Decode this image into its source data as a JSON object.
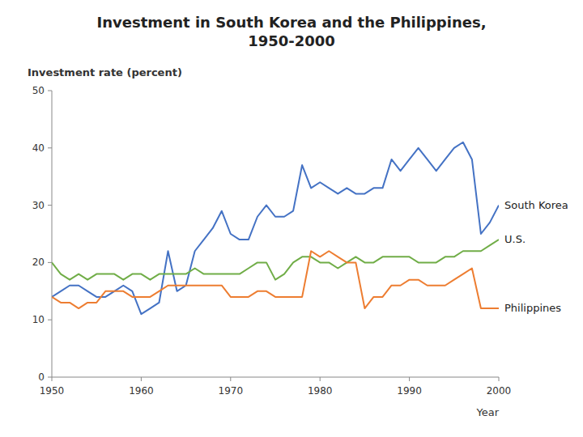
{
  "chart_data": {
    "type": "line",
    "title": "Investment in South Korea and the Philippines,\n1950-2000",
    "y_label": "Investment rate (percent)",
    "x_label": "Year",
    "x": [
      1950,
      1951,
      1952,
      1953,
      1954,
      1955,
      1956,
      1957,
      1958,
      1959,
      1960,
      1961,
      1962,
      1963,
      1964,
      1965,
      1966,
      1967,
      1968,
      1969,
      1970,
      1971,
      1972,
      1973,
      1974,
      1975,
      1976,
      1977,
      1978,
      1979,
      1980,
      1981,
      1982,
      1983,
      1984,
      1985,
      1986,
      1987,
      1988,
      1989,
      1990,
      1991,
      1992,
      1993,
      1994,
      1995,
      1996,
      1997,
      1998,
      1999,
      2000
    ],
    "series": [
      {
        "name": "South Korea",
        "color": "#4472C4",
        "values": [
          14,
          15,
          16,
          16,
          15,
          14,
          14,
          15,
          16,
          15,
          11,
          12,
          13,
          22,
          15,
          16,
          22,
          24,
          26,
          29,
          25,
          24,
          24,
          28,
          30,
          28,
          28,
          29,
          37,
          33,
          34,
          33,
          32,
          33,
          32,
          32,
          33,
          33,
          38,
          36,
          38,
          40,
          38,
          36,
          38,
          40,
          41,
          38,
          25,
          27,
          30
        ]
      },
      {
        "name": "U.S.",
        "color": "#70AD47",
        "values": [
          20,
          18,
          17,
          18,
          17,
          18,
          18,
          18,
          17,
          18,
          18,
          17,
          18,
          18,
          18,
          18,
          19,
          18,
          18,
          18,
          18,
          18,
          19,
          20,
          20,
          17,
          18,
          20,
          21,
          21,
          20,
          20,
          19,
          20,
          21,
          20,
          20,
          21,
          21,
          21,
          21,
          20,
          20,
          20,
          21,
          21,
          22,
          22,
          22,
          23,
          24
        ]
      },
      {
        "name": "Philippines",
        "color": "#ED7D31",
        "values": [
          14,
          13,
          13,
          12,
          13,
          13,
          15,
          15,
          15,
          14,
          14,
          14,
          15,
          16,
          16,
          16,
          16,
          16,
          16,
          16,
          14,
          14,
          14,
          15,
          15,
          14,
          14,
          14,
          14,
          22,
          21,
          22,
          21,
          20,
          20,
          12,
          14,
          14,
          16,
          16,
          17,
          17,
          16,
          16,
          16,
          17,
          18,
          19,
          12,
          12,
          12
        ]
      }
    ],
    "xlim": [
      1950,
      2000
    ],
    "ylim": [
      0,
      50
    ],
    "xticks": [
      1950,
      1960,
      1970,
      1980,
      1990,
      2000
    ],
    "yticks": [
      0,
      10,
      20,
      30,
      40,
      50
    ],
    "grid": false
  }
}
